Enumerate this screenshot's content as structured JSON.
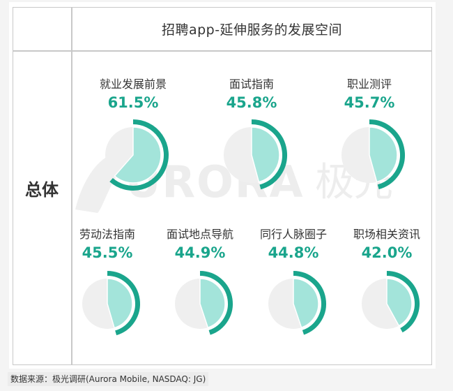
{
  "title": "招聘app-延伸服务的发展空间",
  "row_label": "总体",
  "watermark": {
    "text_en": "URORA",
    "text_cn": "极光"
  },
  "source": "数据来源：极光调研(Aurora Mobile, NASDAQ: JG)",
  "colors": {
    "arc": "#1aa58c",
    "fill": "#a3e4da",
    "background_circle": "#efefef",
    "value_text": "#1aa58c",
    "border": "#c8c8c8"
  },
  "items": [
    {
      "label": "就业发展前景",
      "value_text": "61.5%"
    },
    {
      "label": "面试指南",
      "value_text": "45.8%"
    },
    {
      "label": "职业测评",
      "value_text": "45.7%"
    },
    {
      "label": "劳动法指南",
      "value_text": "45.5%"
    },
    {
      "label": "面试地点导航",
      "value_text": "44.9%"
    },
    {
      "label": "同行人脉圈子",
      "value_text": "44.8%"
    },
    {
      "label": "职场相关资讯",
      "value_text": "42.0%"
    }
  ],
  "chart_data": {
    "type": "pie",
    "title": "招聘app-延伸服务的发展空间",
    "subtitle": "",
    "row_label": "总体",
    "categories": [
      "就业发展前景",
      "面试指南",
      "职业测评",
      "劳动法指南",
      "面试地点导航",
      "同行人脉圈子",
      "职场相关资讯"
    ],
    "values": [
      61.5,
      45.8,
      45.7,
      45.5,
      44.9,
      44.8,
      42.0
    ],
    "unit": "%",
    "legend": "none",
    "grid": false,
    "layout": "7 individual percentage pie/arc gauges: 3 in top row, 4 in bottom row"
  }
}
